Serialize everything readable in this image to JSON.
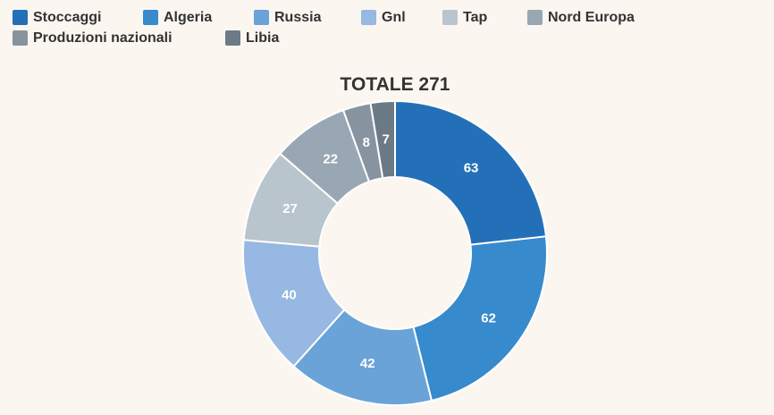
{
  "chart_data": {
    "type": "pie",
    "title": "TOTALE 271",
    "categories": [
      "Stoccaggi",
      "Algeria",
      "Russia",
      "Gnl",
      "Tap",
      "Nord Europa",
      "Produzioni nazionali",
      "Libia"
    ],
    "values": [
      63,
      62,
      42,
      40,
      27,
      22,
      8,
      7
    ],
    "colors": [
      "#2470b8",
      "#378acc",
      "#6aa3d8",
      "#96b8e2",
      "#b9c5cd",
      "#98a7b3",
      "#87949f",
      "#6c7a86"
    ],
    "donut": true,
    "legend_position": "top-left"
  }
}
